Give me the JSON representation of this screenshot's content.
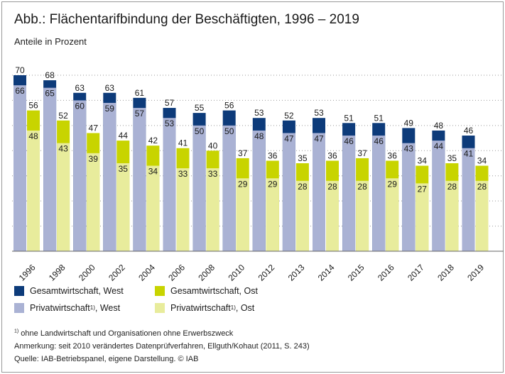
{
  "title": "Abb.: Flächentarifbindung der Beschäftigten, 1996 – 2019",
  "subtitle": "Anteile in Prozent",
  "colors": {
    "west_total": "#0d3b7a",
    "west_private": "#aab2d4",
    "east_total": "#c8d400",
    "east_private": "#e8ec9c"
  },
  "legend": {
    "west_total": "Gesamtwirtschaft, West",
    "west_private": "Privatwirtschaft",
    "west_private_suffix": ", West",
    "east_total": "Gesamtwirtschaft, Ost",
    "east_private": "Privatwirtschaft",
    "east_private_suffix": ", Ost",
    "footnote_mark": "1)"
  },
  "notes": {
    "footnote_mark": "1)",
    "footnote_text": "ohne Landwirtschaft und Organisationen ohne Erwerbszweck",
    "remark": "Anmerkung: seit 2010 verändertes Datenprüfverfahren, Ellguth/Kohaut (2011, S. 243)",
    "source": "Quelle: IAB-Betriebspanel, eigene Darstellung. © IAB"
  },
  "chart_data": {
    "type": "bar",
    "categories": [
      "1996",
      "1998",
      "2000",
      "2002",
      "2004",
      "2006",
      "2008",
      "2010",
      "2012",
      "2013",
      "2014",
      "2015",
      "2016",
      "2017",
      "2018",
      "2019"
    ],
    "series": [
      {
        "name": "Gesamtwirtschaft, West",
        "values": [
          70,
          68,
          63,
          63,
          61,
          57,
          55,
          56,
          53,
          52,
          53,
          51,
          51,
          49,
          48,
          46
        ]
      },
      {
        "name": "Privatwirtschaft, West",
        "values": [
          66,
          65,
          60,
          59,
          57,
          53,
          50,
          50,
          48,
          47,
          47,
          46,
          46,
          43,
          44,
          41
        ]
      },
      {
        "name": "Gesamtwirtschaft, Ost",
        "values": [
          56,
          52,
          47,
          44,
          42,
          41,
          40,
          37,
          36,
          35,
          36,
          37,
          36,
          34,
          35,
          34
        ]
      },
      {
        "name": "Privatwirtschaft, Ost",
        "values": [
          48,
          43,
          39,
          35,
          34,
          33,
          33,
          29,
          29,
          28,
          28,
          28,
          29,
          27,
          28,
          28
        ]
      }
    ],
    "ylim": [
      0,
      80
    ],
    "grid": true,
    "legend_position": "bottom"
  }
}
